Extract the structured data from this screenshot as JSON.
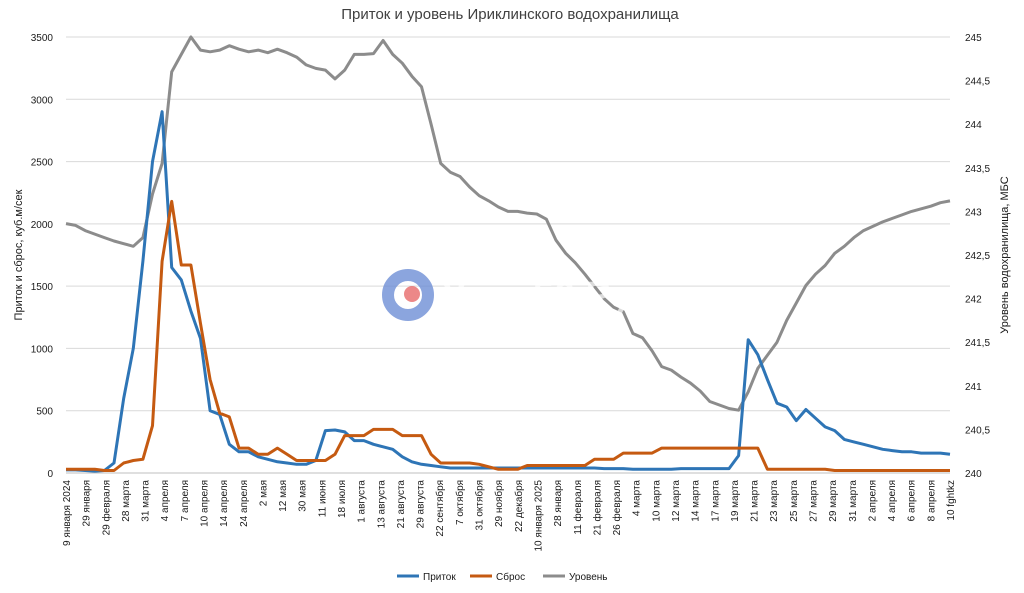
{
  "chart_data": {
    "type": "line",
    "title": "Приток и уровень Ириклинского водохранилища",
    "ylabel": "Приток и сброс, куб.м/сек",
    "y2label": "Уровень водохранилища, МБС",
    "ylim": [
      0,
      3500
    ],
    "y2lim": [
      240,
      245
    ],
    "grid": "horizontal",
    "legend_position": "bottom",
    "y_ticks": [
      "0",
      "500",
      "1000",
      "1500",
      "2000",
      "2500",
      "3000",
      "3500"
    ],
    "y2_ticks": [
      "240",
      "240,5",
      "241",
      "241,5",
      "242",
      "242,5",
      "243",
      "243,5",
      "244",
      "244,5",
      "245"
    ],
    "x_labels": [
      "9 января 2024",
      "29 января",
      "29 февраля",
      "28 марта",
      "31 марта",
      "4 апреля",
      "7 апреля",
      "10 апреля",
      "14 апреля",
      "24 апреля",
      "2 мая",
      "12 мая",
      "30 мая",
      "11 июня",
      "18 июля",
      "1 августа",
      "13 августа",
      "21 августа",
      "29 августа",
      "22 сентября",
      "7 октября",
      "31 октября",
      "29 ноября",
      "22 декабря",
      "10 января 2025",
      "28 января",
      "11 февраля",
      "21 февраля",
      "26 февраля",
      "4 марта",
      "10 марта",
      "12 марта",
      "14 марта",
      "17 марта",
      "19 марта",
      "21 марта",
      "23 марта",
      "25 марта",
      "27 марта",
      "29 марта",
      "31 марта",
      "2 апреля",
      "4 апреля",
      "6 апреля",
      "8 апреля",
      "10 fghtkz"
    ],
    "series": [
      {
        "name": "Приток",
        "color": "#2e75b6",
        "axis": "left",
        "values": [
          25,
          25,
          20,
          15,
          20,
          80,
          600,
          1000,
          1700,
          2500,
          2900,
          1650,
          1550,
          1300,
          1080,
          500,
          470,
          230,
          170,
          170,
          130,
          110,
          90,
          80,
          70,
          70,
          100,
          340,
          345,
          330,
          260,
          260,
          230,
          210,
          190,
          130,
          90,
          70,
          60,
          50,
          40,
          40,
          40,
          40,
          40,
          40,
          40,
          40,
          40,
          40,
          40,
          40,
          40,
          40,
          40,
          40,
          35,
          35,
          35,
          30,
          30,
          30,
          30,
          30,
          35,
          35,
          35,
          35,
          35,
          35,
          140,
          1070,
          950,
          750,
          560,
          530,
          420,
          510,
          440,
          370,
          340,
          270,
          250,
          230,
          210,
          190,
          180,
          170,
          170,
          160,
          160,
          160,
          150
        ]
      },
      {
        "name": "Сброс",
        "color": "#c55a11",
        "axis": "left",
        "values": [
          30,
          30,
          30,
          30,
          20,
          20,
          80,
          100,
          110,
          380,
          1700,
          2180,
          1670,
          1670,
          1200,
          750,
          480,
          450,
          200,
          200,
          150,
          150,
          200,
          150,
          100,
          100,
          100,
          100,
          150,
          300,
          300,
          300,
          350,
          350,
          350,
          300,
          300,
          300,
          150,
          80,
          80,
          80,
          80,
          70,
          50,
          30,
          30,
          30,
          60,
          60,
          60,
          60,
          60,
          60,
          60,
          110,
          110,
          110,
          160,
          160,
          160,
          160,
          200,
          200,
          200,
          200,
          200,
          200,
          200,
          200,
          200,
          200,
          200,
          30,
          30,
          30,
          30,
          30,
          30,
          30,
          20,
          20,
          20,
          20,
          20,
          20,
          20,
          20,
          20,
          20,
          20,
          20,
          20
        ]
      },
      {
        "name": "Уровень",
        "color": "#8c8c8c",
        "axis": "right",
        "values": [
          242.86,
          242.84,
          242.78,
          242.74,
          242.7,
          242.66,
          242.63,
          242.6,
          242.7,
          243.2,
          243.55,
          244.6,
          244.8,
          245.0,
          244.85,
          244.83,
          244.85,
          244.9,
          244.86,
          244.83,
          244.85,
          244.82,
          244.86,
          244.82,
          244.77,
          244.68,
          244.64,
          244.62,
          244.52,
          244.62,
          244.8,
          244.8,
          244.81,
          244.96,
          244.8,
          244.7,
          244.55,
          244.43,
          244.0,
          243.55,
          243.45,
          243.4,
          243.28,
          243.18,
          243.12,
          243.05,
          243.0,
          243.0,
          242.98,
          242.97,
          242.91,
          242.67,
          242.52,
          242.41,
          242.28,
          242.14,
          242.0,
          241.9,
          241.85,
          241.6,
          241.55,
          241.4,
          241.22,
          241.18,
          241.1,
          241.03,
          240.94,
          240.82,
          240.78,
          240.74,
          240.72,
          240.93,
          241.2,
          241.35,
          241.5,
          241.75,
          241.95,
          242.15,
          242.28,
          242.38,
          242.52,
          242.6,
          242.7,
          242.78,
          242.83,
          242.88,
          242.92,
          242.96,
          243.0,
          243.03,
          243.06,
          243.1,
          243.12
        ]
      }
    ]
  },
  "watermark": {
    "text": "Урал56.Ру",
    "logo_icon": "ural56-logo-icon",
    "ring_color": "#6f8fd6",
    "dot_color": "#e86b6b"
  }
}
